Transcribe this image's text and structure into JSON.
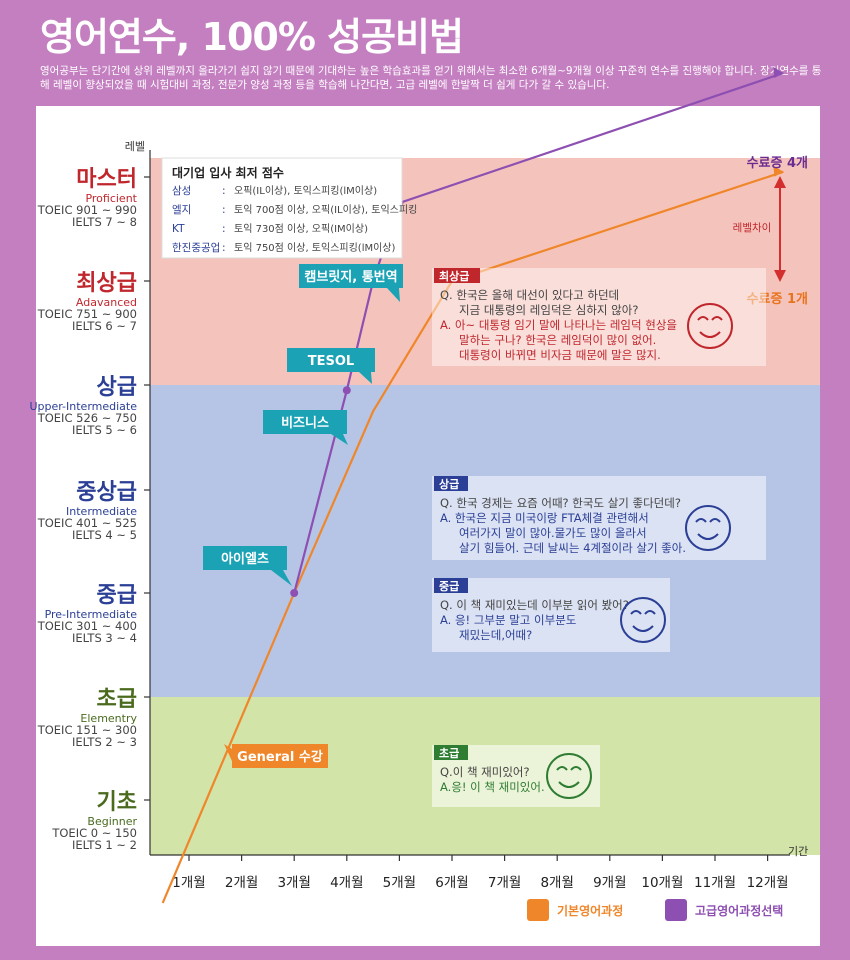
{
  "title": "영어연수, 100% 성공비법",
  "intro": "영어공부는 단기간에 상위 레벨까지 올라가기 쉽지 않기 때문에 기대하는 높은 학습효과를 얻기 위해서는 최소한 6개월~9개월 이상 꾸준히 연수를 진행해야 합니다. 장기연수를 통해 레벨이 향상되었을 때 시험대비 과정, 전문가 양성 과정 등을 학습해 나간다면, 고급 레벨에 한발짝 더 쉽게 다가 갈 수 있습니다.",
  "axis": {
    "y_label": "레벨",
    "x_label": "기간"
  },
  "levels": [
    {
      "name": "마스터",
      "en": "Proficient",
      "toeic": "TOEIC 901 ~ 990",
      "ielts": "IELTS 7 ~ 8",
      "color": "#c0272d"
    },
    {
      "name": "최상급",
      "en": "Adavanced",
      "toeic": "TOEIC 751 ~ 900",
      "ielts": "IELTS 6 ~ 7",
      "color": "#c0272d"
    },
    {
      "name": "상급",
      "en": "Upper-Intermediate",
      "toeic": "TOEIC  526 ~ 750",
      "ielts": "IELTS 5 ~ 6",
      "color": "#2b3f96"
    },
    {
      "name": "중상급",
      "en": "Intermediate",
      "toeic": "TOEIC 401 ~ 525",
      "ielts": "IELTS 4 ~ 5",
      "color": "#2b3f96"
    },
    {
      "name": "중급",
      "en": "Pre-Intermediate",
      "toeic": "TOEIC 301 ~ 400",
      "ielts": "IELTS 3 ~ 4",
      "color": "#2b3f96"
    },
    {
      "name": "초급",
      "en": "Elementry",
      "toeic": "TOEIC 151 ~ 300",
      "ielts": "IELTS 2 ~ 3",
      "color": "#4a6b1e"
    },
    {
      "name": "기초",
      "en": "Beginner",
      "toeic": "TOEIC  0 ~ 150",
      "ielts": "IELTS 1 ~ 2",
      "color": "#4a6b1e"
    }
  ],
  "months": [
    "1개월",
    "2개월",
    "3개월",
    "4개월",
    "5개월",
    "6개월",
    "7개월",
    "8개월",
    "9개월",
    "10개월",
    "11개월",
    "12개월"
  ],
  "zone_colors": {
    "advanced": "#f4c4bc",
    "intermediate": "#b6c5e6",
    "beginner": "#d3e4a8"
  },
  "chart_data": {
    "type": "line",
    "x_unit": "개월",
    "y_unit": "레벨",
    "series": [
      {
        "name": "기본영어과정",
        "color": "#f0862a",
        "points": [
          [
            0.5,
            -0.3
          ],
          [
            3,
            3
          ],
          [
            4.5,
            4.75
          ],
          [
            6,
            6
          ],
          [
            12.3,
            7.05
          ]
        ]
      },
      {
        "name": "고급영어과정선택",
        "color": "#8d4fb1",
        "points": [
          [
            3,
            3
          ],
          [
            4,
            4.95
          ],
          [
            4.5,
            6
          ],
          [
            5,
            6.75
          ],
          [
            12.3,
            8.15
          ]
        ]
      }
    ],
    "markers": [
      [
        3,
        3
      ],
      [
        4,
        4.95
      ],
      [
        4.5,
        6
      ],
      [
        5,
        6.75
      ]
    ]
  },
  "callouts": [
    {
      "label": "General 수강",
      "color": "#f0862a"
    },
    {
      "label": "아이엘츠",
      "color": "#1ba3b5"
    },
    {
      "label": "비즈니스",
      "color": "#1ba3b5"
    },
    {
      "label": "TESOL",
      "color": "#1ba3b5"
    },
    {
      "label": "캠브릿지, 통번역",
      "color": "#1ba3b5"
    }
  ],
  "end_labels": {
    "top": "수료증 4개",
    "bottom": "수료증 1개",
    "gap": "레벨차이"
  },
  "score_box": {
    "title": "대기업 입사 최저 점수",
    "rows": [
      {
        "company": "삼성",
        "req": "오픽(IL이상), 토익스피킹(lM이상)"
      },
      {
        "company": "엘지",
        "req": "토익 700점 이상, 오픽(IL이상), 토익스피킹"
      },
      {
        "company": "KT",
        "req": "토익 730점 이상, 오픽(IM이상)"
      },
      {
        "company": "한진중공업",
        "req": "토익 750점 이상, 토익스피킹(lM이상)"
      }
    ]
  },
  "dialogs": [
    {
      "level": "최상급",
      "q": [
        "Q. 한국은 올해 대선이 있다고 하던데",
        "지금 대통령의 레임덕은 심하지 않아?"
      ],
      "a": [
        "A. 아~ 대통령 임기 말에 나타나는 레임덕 현상을",
        "말하는 구나? 한국은 레임덕이 많이 없어.",
        "대통령이 바뀌면 비자금 때문에 말은 많지."
      ],
      "color": "#c0272d"
    },
    {
      "level": "상급",
      "q": [
        "Q. 한국 경제는 요즘 어때? 한국도 살기 좋다던데?"
      ],
      "a": [
        "A. 한국은 지금 미국이랑 FTA체결 관련해서",
        "여러가지 말이 많아.물가도 많이 올라서",
        "살기 힘들어. 근데 날씨는 4계절이라 살기 좋아."
      ],
      "color": "#2b3f96"
    },
    {
      "level": "중급",
      "q": [
        "Q. 이 책 재미있는데 이부분 읽어 봤어?"
      ],
      "a": [
        "A. 응! 그부분 말고 이부분도",
        "재밌는데,어때?"
      ],
      "color": "#2b3f96"
    },
    {
      "level": "초급",
      "q": [
        "Q.이 책 재미있어?"
      ],
      "a": [
        "A.응! 이 책 재미있어."
      ],
      "color": "#2e7d32"
    }
  ],
  "legend": [
    {
      "label": "기본영어과정",
      "color": "#f0862a"
    },
    {
      "label": "고급영어과정선택",
      "color": "#8d4fb1"
    }
  ]
}
